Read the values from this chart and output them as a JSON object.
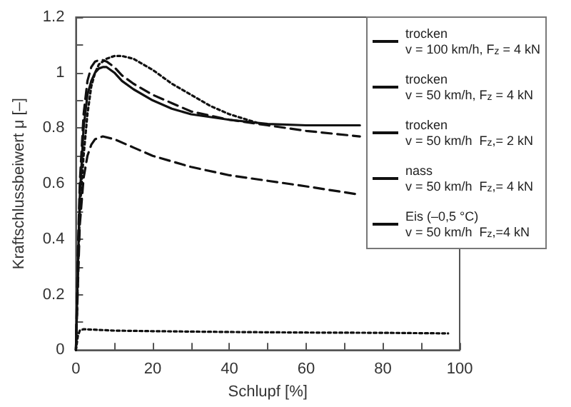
{
  "chart_data": {
    "type": "line",
    "xlabel": "Schlupf [%]",
    "ylabel": "Kraftschlussbeiwert μ [–]",
    "xlim": [
      0,
      100
    ],
    "ylim": [
      0,
      1.2
    ],
    "xticks": [
      0,
      {
        "value": 10,
        "label": null
      },
      20,
      {
        "value": 30,
        "label": null
      },
      40,
      {
        "value": 50,
        "label": null
      },
      60,
      {
        "value": 70,
        "label": null
      },
      80,
      {
        "value": 90,
        "label": null
      },
      100
    ],
    "yticks": [
      0,
      {
        "value": 0.1,
        "label": null
      },
      0.2,
      {
        "value": 0.3,
        "label": null
      },
      0.4,
      {
        "value": 0.5,
        "label": null
      },
      0.6,
      {
        "value": 0.7,
        "label": null
      },
      0.8,
      {
        "value": 0.9,
        "label": null
      },
      1,
      {
        "value": 1.1,
        "label": null
      },
      1.2
    ],
    "grid": false,
    "legend": "right",
    "marker": "none",
    "series": [
      {
        "name": "trocken\nv = 100 km/h, F$_{z}$ = 4 kN",
        "color": "#111111",
        "line_style": "solid",
        "x": [
          0,
          0.5,
          1,
          2,
          3,
          4,
          5,
          6,
          7,
          8,
          10,
          12,
          15,
          20,
          25,
          30,
          40,
          50,
          60,
          74
        ],
        "values": [
          0,
          0.3,
          0.55,
          0.8,
          0.92,
          0.97,
          1.0,
          1.015,
          1.02,
          1.02,
          1.0,
          0.97,
          0.94,
          0.9,
          0.87,
          0.85,
          0.83,
          0.815,
          0.81,
          0.81
        ]
      },
      {
        "name": "trocken\nv = 50 km/h, F$_{z}$ = 4 kN",
        "color": "#111111",
        "line_style": "dashed",
        "x": [
          0,
          0.5,
          1,
          2,
          3,
          4,
          5,
          6,
          7,
          8,
          10,
          12,
          15,
          20,
          25,
          30,
          40,
          50,
          60,
          74
        ],
        "values": [
          0,
          0.35,
          0.6,
          0.85,
          0.97,
          1.02,
          1.04,
          1.045,
          1.045,
          1.04,
          1.02,
          0.99,
          0.96,
          0.92,
          0.89,
          0.86,
          0.83,
          0.81,
          0.79,
          0.77
        ]
      },
      {
        "name": "trocken\nv = 50 km/h  F$_{z}$,= 2 kN",
        "color": "#111111",
        "line_style": "dotted",
        "x": [
          0,
          1,
          2,
          3,
          4,
          5,
          6,
          8,
          10,
          12,
          15,
          20,
          25,
          30,
          35,
          40,
          47
        ],
        "values": [
          0,
          0.5,
          0.7,
          0.85,
          0.95,
          1.0,
          1.03,
          1.05,
          1.06,
          1.06,
          1.05,
          1.01,
          0.96,
          0.92,
          0.88,
          0.85,
          0.82
        ]
      },
      {
        "name": "nass\nv = 50 km/h  F$_{z}$,= 4 kN",
        "color": "#111111",
        "line_style": "dashed",
        "x": [
          0,
          1,
          2,
          3,
          4,
          5,
          7,
          10,
          15,
          20,
          30,
          40,
          50,
          60,
          74
        ],
        "values": [
          0,
          0.45,
          0.62,
          0.7,
          0.74,
          0.76,
          0.77,
          0.76,
          0.73,
          0.7,
          0.66,
          0.63,
          0.61,
          0.59,
          0.56
        ]
      },
      {
        "name": "Eis (–0,5 °C)\nv = 50 km/h  F$_{z}$,=4 kN",
        "color": "#111111",
        "line_style": "dotted",
        "x": [
          0,
          0.5,
          1,
          2,
          10,
          20,
          40,
          60,
          80,
          97
        ],
        "values": [
          0,
          0.05,
          0.07,
          0.075,
          0.07,
          0.068,
          0.065,
          0.063,
          0.062,
          0.06
        ]
      }
    ]
  }
}
